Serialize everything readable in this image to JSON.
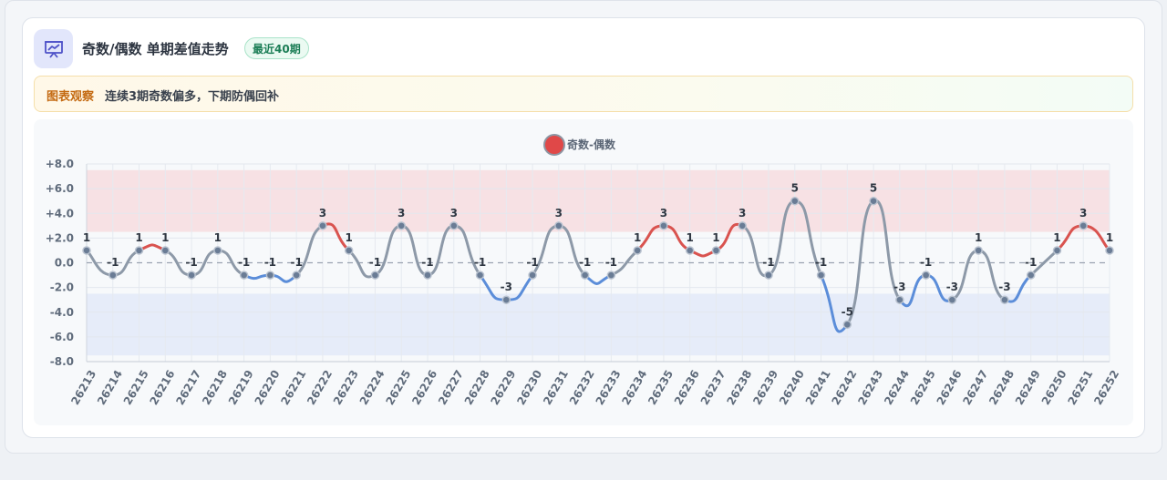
{
  "header": {
    "title": "奇数/偶数 单期差值走势",
    "badge": "最近40期"
  },
  "note": {
    "label": "图表观察",
    "text": "连续3期奇数偏多，下期防偶回补"
  },
  "colors": {
    "positive_line": "#d9534f",
    "negative_line": "#5b8dd9",
    "neutral_line": "#8d99a8",
    "point_fill": "#6a7c95",
    "upper_band": "#f7e1e4",
    "lower_band": "#e6ecf9",
    "legend_marker": "#e04848",
    "accent_icon": "#4e52c8"
  },
  "chart_data": {
    "type": "line",
    "legend": [
      "奇数-偶数"
    ],
    "legend_position": "top-center",
    "x": [
      "26213",
      "26214",
      "26215",
      "26216",
      "26217",
      "26218",
      "26219",
      "26220",
      "26221",
      "26222",
      "26223",
      "26224",
      "26225",
      "26226",
      "26227",
      "26228",
      "26229",
      "26230",
      "26231",
      "26232",
      "26233",
      "26234",
      "26235",
      "26236",
      "26237",
      "26238",
      "26239",
      "26240",
      "26241",
      "26242",
      "26243",
      "26244",
      "26245",
      "26246",
      "26247",
      "26248",
      "26249",
      "26250",
      "26251",
      "26252"
    ],
    "series": [
      {
        "name": "奇数-偶数",
        "values": [
          1,
          -1,
          1,
          1,
          -1,
          1,
          -1,
          -1,
          -1,
          3,
          1,
          -1,
          3,
          -1,
          3,
          -1,
          -3,
          -1,
          3,
          -1,
          -1,
          1,
          3,
          1,
          1,
          3,
          -1,
          5,
          -1,
          -5,
          5,
          -3,
          -1,
          -3,
          1,
          -3,
          -1,
          1,
          3,
          1
        ]
      }
    ],
    "ylim": [
      -8,
      8
    ],
    "yticks": [
      "+8.0",
      "+6.0",
      "+4.0",
      "+2.0",
      "0.0",
      "-2.0",
      "-4.0",
      "-6.0",
      "-8.0"
    ],
    "ytick_values": [
      8,
      6,
      4,
      2,
      0,
      -2,
      -4,
      -6,
      -8
    ],
    "bands": [
      {
        "from": 2.5,
        "to": 7.5,
        "name": "upper"
      },
      {
        "from": -7.5,
        "to": -2.5,
        "name": "lower"
      }
    ],
    "grid": true,
    "zero_line": "dashed"
  }
}
